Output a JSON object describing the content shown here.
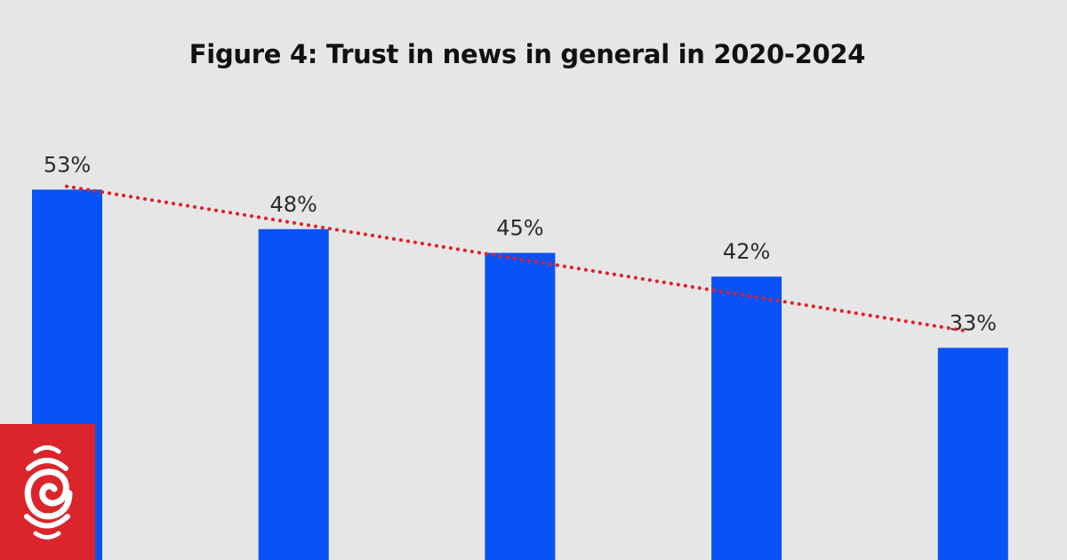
{
  "chart_data": {
    "type": "bar",
    "title": "Figure 4: Trust in news in general in 2020-2024",
    "values": [
      53,
      48,
      45,
      42,
      33
    ],
    "data_labels": [
      "53%",
      "48%",
      "45%",
      "42%",
      "33%"
    ],
    "trendline": {
      "type": "linear",
      "style": "dotted",
      "color": "#e0202a"
    },
    "bar_color": "#0a52f5",
    "background": "#e6e6e6",
    "grid": false,
    "legend": "none"
  },
  "logo": {
    "name": "rnz-logo",
    "color": "#d9252b"
  }
}
